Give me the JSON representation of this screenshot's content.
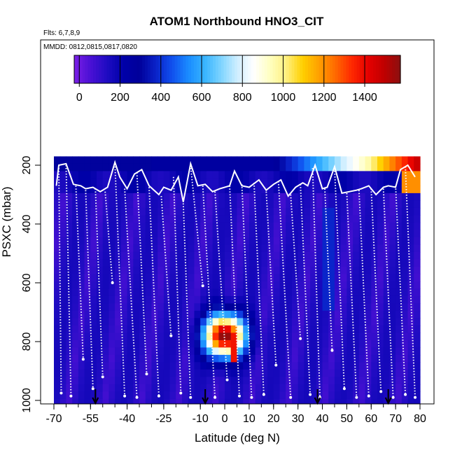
{
  "chart_data": {
    "type": "heatmap",
    "title": "ATOM1 Northbound HNO3_CIT",
    "flights_label": "Flts: 6,7,8,9",
    "dates_label": "MMDD: 0812,0815,0817,0820",
    "xlabel": "Latitude (deg N)",
    "ylabel": "PSXC (mbar)",
    "xlim": [
      -70,
      80
    ],
    "ylim": [
      1000,
      100
    ],
    "x_ticks": [
      "-70",
      "-55",
      "-40",
      "-25",
      "-10",
      "0",
      "10",
      "20",
      "30",
      "40",
      "50",
      "60",
      "70",
      "80"
    ],
    "x_tick_values": [
      -70,
      -55,
      -40,
      -25,
      -10,
      0,
      10,
      20,
      30,
      40,
      50,
      60,
      70,
      80
    ],
    "y_ticks": [
      "200",
      "400",
      "600",
      "800",
      "1000"
    ],
    "y_tick_values": [
      200,
      400,
      600,
      800,
      1000
    ],
    "colorbar": {
      "range": [
        -25,
        1575
      ],
      "ticks": [
        "0",
        "200",
        "400",
        "600",
        "800",
        "1000",
        "1200",
        "1400"
      ],
      "tick_values": [
        0,
        200,
        400,
        600,
        800,
        1000,
        1200,
        1400
      ],
      "colors": [
        "#7b1fe6",
        "#4a10d4",
        "#1f0cc2",
        "#0000a8",
        "#00009a",
        "#0a22c8",
        "#1050ee",
        "#1a8cff",
        "#37b4ff",
        "#7ed4ff",
        "#cfeeff",
        "#ffffff",
        "#ffffc0",
        "#fff080",
        "#ffd000",
        "#ffa000",
        "#ff6a00",
        "#ff2a00",
        "#e60000",
        "#c00000",
        "#8a1010"
      ]
    },
    "arrow_latitudes": [
      -53,
      -8,
      38,
      67
    ],
    "upper_profile": [
      [
        -69,
        270
      ],
      [
        -68,
        200
      ],
      [
        -65,
        195
      ],
      [
        -62,
        265
      ],
      [
        -59,
        270
      ],
      [
        -57,
        280
      ],
      [
        -54,
        275
      ],
      [
        -51,
        290
      ],
      [
        -48,
        275
      ],
      [
        -45,
        190
      ],
      [
        -43,
        240
      ],
      [
        -40,
        280
      ],
      [
        -37,
        230
      ],
      [
        -34,
        215
      ],
      [
        -31,
        270
      ],
      [
        -27,
        300
      ],
      [
        -25,
        275
      ],
      [
        -22,
        285
      ],
      [
        -19,
        240
      ],
      [
        -17,
        325
      ],
      [
        -14,
        195
      ],
      [
        -11,
        270
      ],
      [
        -8,
        265
      ],
      [
        -5,
        290
      ],
      [
        -2,
        280
      ],
      [
        2,
        270
      ],
      [
        4,
        220
      ],
      [
        7,
        270
      ],
      [
        10,
        275
      ],
      [
        14,
        250
      ],
      [
        17,
        285
      ],
      [
        20,
        265
      ],
      [
        23,
        250
      ],
      [
        26,
        305
      ],
      [
        29,
        275
      ],
      [
        32,
        260
      ],
      [
        34,
        270
      ],
      [
        37,
        200
      ],
      [
        40,
        280
      ],
      [
        42,
        275
      ],
      [
        45,
        205
      ],
      [
        48,
        295
      ],
      [
        51,
        290
      ],
      [
        54,
        285
      ],
      [
        56,
        280
      ],
      [
        59,
        270
      ],
      [
        62,
        300
      ],
      [
        65,
        275
      ],
      [
        67,
        270
      ],
      [
        70,
        275
      ],
      [
        72,
        215
      ],
      [
        75,
        200
      ],
      [
        78,
        240
      ]
    ],
    "profile_bottoms": [
      [
        -67,
        975
      ],
      [
        -63,
        985
      ],
      [
        -58,
        860
      ],
      [
        -54,
        960
      ],
      [
        -50,
        920
      ],
      [
        -46,
        600
      ],
      [
        -41,
        985
      ],
      [
        -36,
        990
      ],
      [
        -32,
        910
      ],
      [
        -27,
        985
      ],
      [
        -22,
        780
      ],
      [
        -18,
        975
      ],
      [
        -14,
        990
      ],
      [
        -9,
        610
      ],
      [
        -4,
        990
      ],
      [
        1,
        930
      ],
      [
        6,
        985
      ],
      [
        11,
        990
      ],
      [
        16,
        980
      ],
      [
        21,
        880
      ],
      [
        27,
        990
      ],
      [
        31,
        790
      ],
      [
        35,
        980
      ],
      [
        39,
        990
      ],
      [
        44,
        830
      ],
      [
        49,
        960
      ],
      [
        54,
        990
      ],
      [
        59,
        985
      ],
      [
        64,
        970
      ],
      [
        69,
        990
      ],
      [
        74,
        980
      ],
      [
        78,
        990
      ]
    ],
    "profile_tops": [
      [
        -68,
        210
      ],
      [
        -65,
        200
      ],
      [
        -61,
        270
      ],
      [
        -57,
        285
      ],
      [
        -53,
        280
      ],
      [
        -49,
        290
      ],
      [
        -45,
        195
      ],
      [
        -41,
        280
      ],
      [
        -36,
        225
      ],
      [
        -31,
        275
      ],
      [
        -26,
        305
      ],
      [
        -21,
        240
      ],
      [
        -17,
        330
      ],
      [
        -14,
        200
      ],
      [
        -9,
        270
      ],
      [
        -4,
        290
      ],
      [
        2,
        270
      ],
      [
        7,
        265
      ],
      [
        12,
        260
      ],
      [
        17,
        290
      ],
      [
        22,
        255
      ],
      [
        27,
        300
      ],
      [
        31,
        265
      ],
      [
        36,
        210
      ],
      [
        41,
        280
      ],
      [
        45,
        210
      ],
      [
        50,
        295
      ],
      [
        55,
        285
      ],
      [
        60,
        280
      ],
      [
        65,
        280
      ],
      [
        70,
        270
      ],
      [
        74,
        205
      ],
      [
        78,
        235
      ]
    ]
  }
}
